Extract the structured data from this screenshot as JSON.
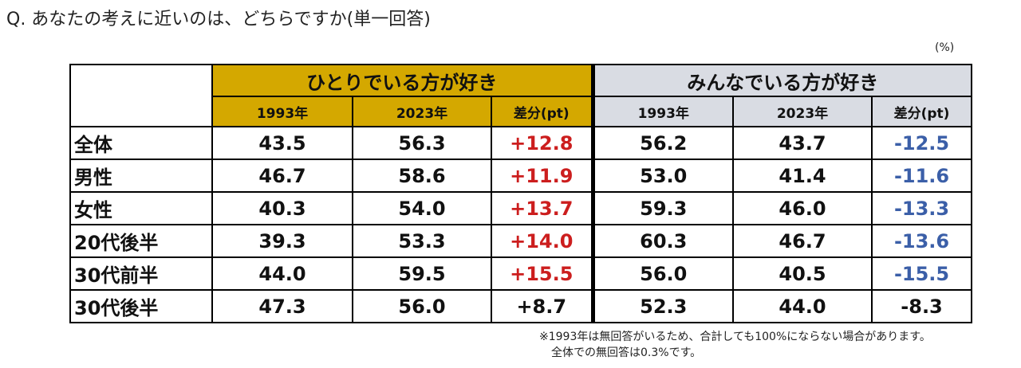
{
  "question": "Q. あなたの考えに近いのは、どちらですか(単一回答)",
  "unit": "(%)",
  "groups": [
    {
      "label": "ひとりでいる方が好き",
      "color": "#d4a800"
    },
    {
      "label": "みんなでいる方が好き",
      "color": "#d9dce3"
    }
  ],
  "sub_headers": [
    "1993年",
    "2023年",
    "差分(pt)",
    "1993年",
    "2023年",
    "差分(pt)"
  ],
  "colors": {
    "positive_diff": "#cc1e1e",
    "negative_diff": "#3b5fa8",
    "neutral": "#111111"
  },
  "rows": [
    {
      "label": "全体",
      "values": [
        "43.5",
        "56.3",
        "+12.8",
        "56.2",
        "43.7",
        "-12.5"
      ]
    },
    {
      "label": "男性",
      "values": [
        "46.7",
        "58.6",
        "+11.9",
        "53.0",
        "41.4",
        "-11.6"
      ]
    },
    {
      "label": "女性",
      "values": [
        "40.3",
        "54.0",
        "+13.7",
        "59.3",
        "46.0",
        "-13.3"
      ]
    },
    {
      "label": "20代後半",
      "values": [
        "39.3",
        "53.3",
        "+14.0",
        "60.3",
        "46.7",
        "-13.6"
      ]
    },
    {
      "label": "30代前半",
      "values": [
        "44.0",
        "59.5",
        "+15.5",
        "56.0",
        "40.5",
        "-15.5"
      ]
    },
    {
      "label": "30代後半",
      "values": [
        "47.3",
        "56.0",
        "+8.7",
        "52.3",
        "44.0",
        "-8.3"
      ]
    }
  ],
  "notes": [
    "※1993年は無回答がいるため、合計しても100%にならない場合があります。",
    "全体での無回答は0.3%です。"
  ]
}
